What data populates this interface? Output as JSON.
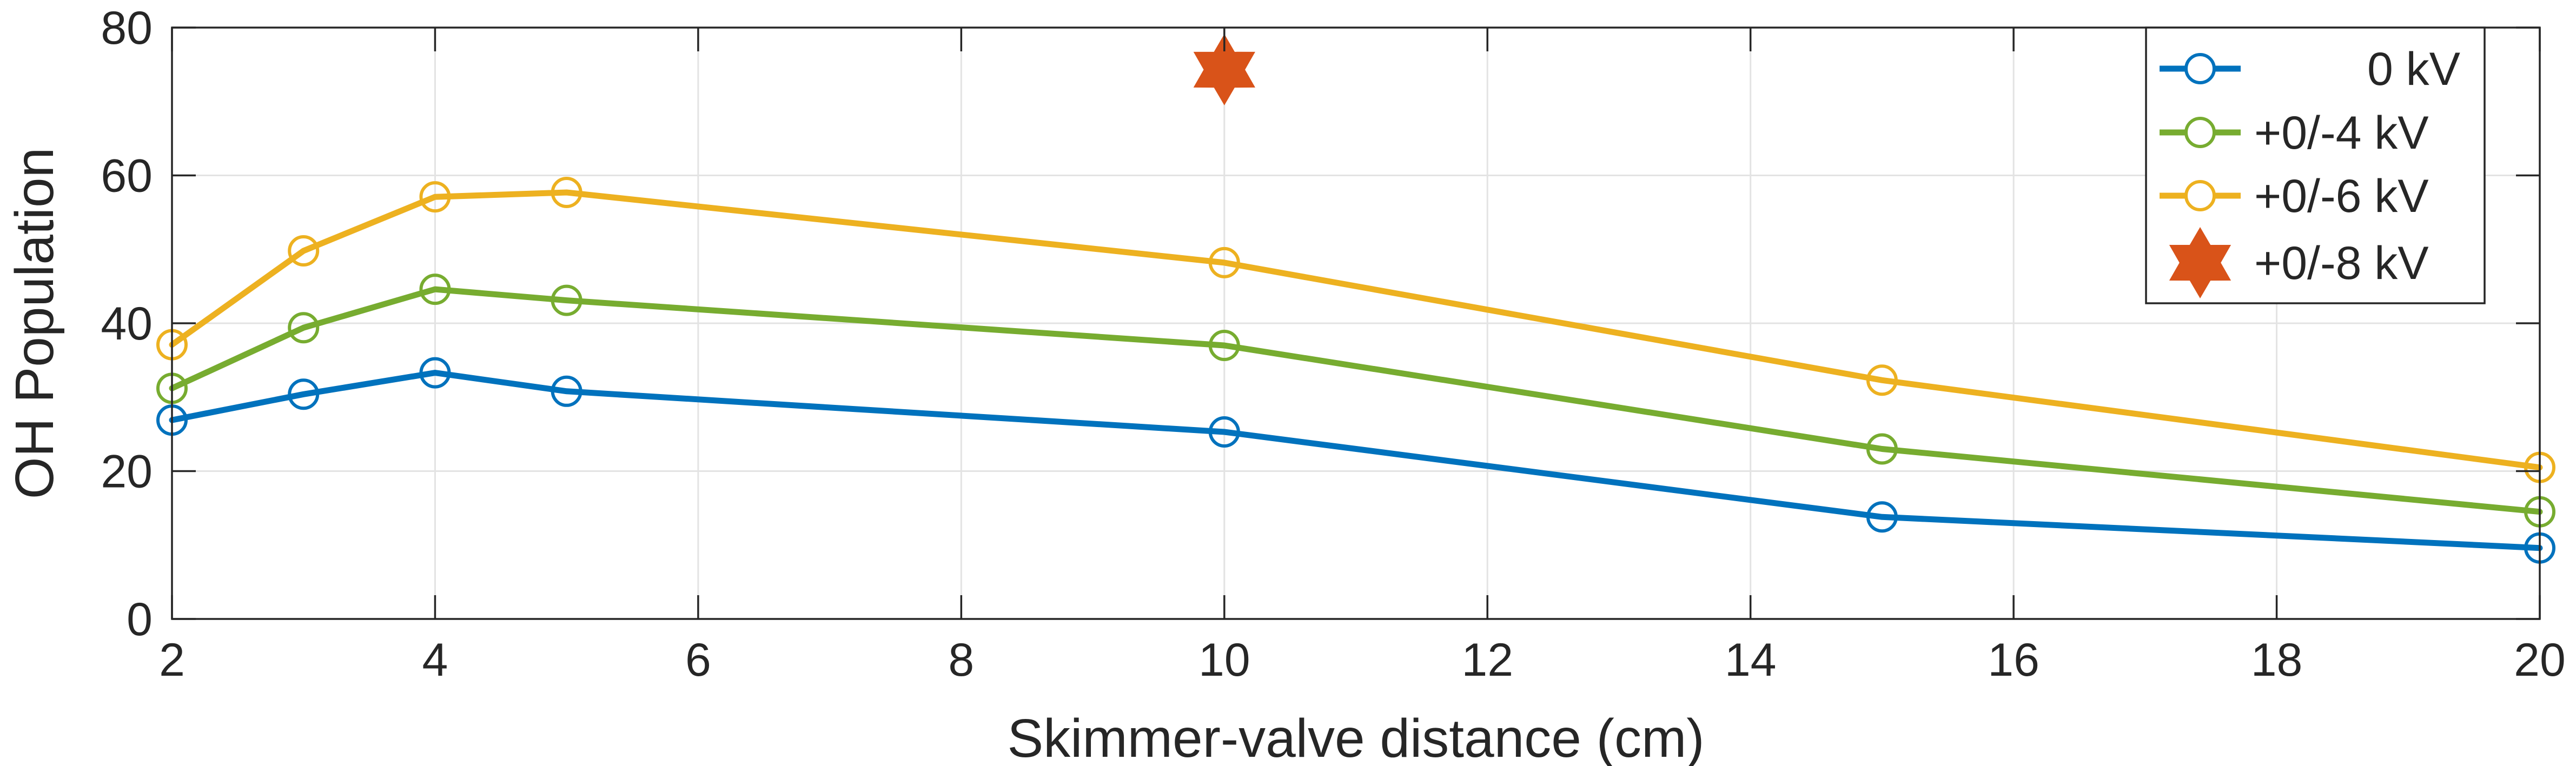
{
  "chart_data": {
    "type": "line",
    "xlabel": "Skimmer-valve distance (cm)",
    "ylabel": "OH Population",
    "xlim": [
      2,
      20
    ],
    "ylim": [
      0,
      80
    ],
    "xticks": [
      2,
      4,
      6,
      8,
      10,
      12,
      14,
      16,
      18,
      20
    ],
    "yticks": [
      0,
      20,
      40,
      60,
      80
    ],
    "grid": true,
    "legend_position": "top-right",
    "series": [
      {
        "name": "0 kV",
        "color": "#0072BD",
        "marker": "circle",
        "x": [
          2,
          3,
          4,
          5,
          10,
          15,
          20
        ],
        "y": [
          26.9,
          30.4,
          33.3,
          30.8,
          25.3,
          13.8,
          9.6
        ]
      },
      {
        "name": "+0/-4 kV",
        "color": "#77AC30",
        "marker": "circle",
        "x": [
          2,
          3,
          4,
          5,
          10,
          15,
          20
        ],
        "y": [
          31.2,
          39.4,
          44.6,
          43.1,
          37.0,
          23.0,
          14.5
        ]
      },
      {
        "name": "+0/-6 kV",
        "color": "#EDB120",
        "marker": "circle",
        "x": [
          2,
          3,
          4,
          5,
          10,
          15,
          20
        ],
        "y": [
          37.1,
          49.8,
          57.1,
          57.7,
          48.2,
          32.3,
          20.5
        ]
      },
      {
        "name": "+0/-8 kV",
        "color": "#D95319",
        "marker": "hexagram",
        "x": [
          10
        ],
        "y": [
          74.3
        ]
      }
    ]
  }
}
